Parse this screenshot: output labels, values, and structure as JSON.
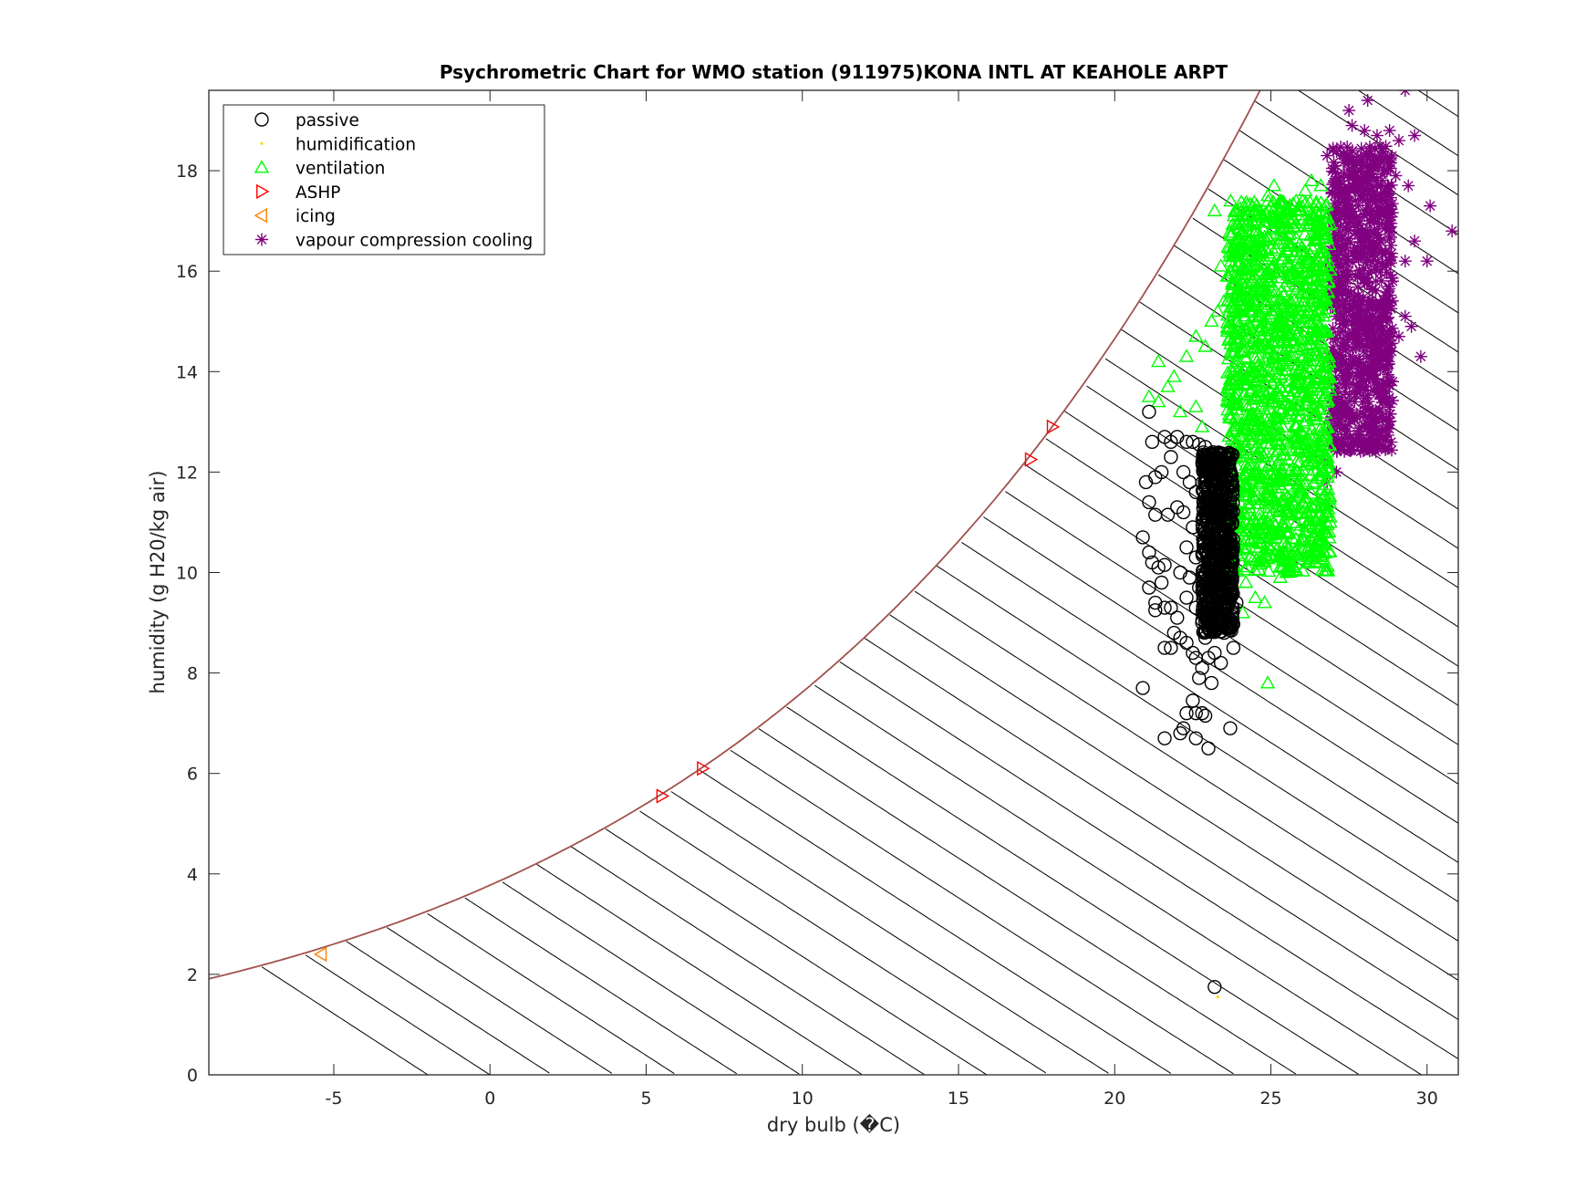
{
  "chart_data": {
    "type": "scatter",
    "title": "Psychrometric Chart for WMO station (911975)KONA INTL AT KEAHOLE ARPT",
    "xlabel": "dry bulb (�C)",
    "ylabel": "humidity (g H20/kg air)",
    "xlim": [
      -9,
      31
    ],
    "ylim": [
      0,
      19.6
    ],
    "xticks": [
      -5,
      0,
      5,
      10,
      15,
      20,
      25,
      30
    ],
    "yticks": [
      0,
      2,
      4,
      6,
      8,
      10,
      12,
      14,
      16,
      18
    ],
    "grid": false,
    "legend_position": "top-left",
    "saturation_curve": {
      "color": "#a0524d",
      "x": [
        -9,
        -8,
        -7,
        -6,
        -5,
        -4,
        -3,
        -2,
        -1,
        0,
        1,
        2,
        3,
        4,
        5,
        6,
        7,
        8,
        9,
        10,
        11,
        12,
        13,
        14,
        15,
        16,
        17,
        18,
        19,
        20,
        21,
        22,
        23,
        24,
        25
      ],
      "y": [
        1.76,
        1.92,
        2.09,
        2.27,
        2.47,
        2.69,
        2.93,
        3.18,
        3.46,
        3.76,
        4.05,
        4.36,
        4.69,
        5.04,
        5.42,
        5.82,
        6.25,
        6.7,
        7.18,
        7.7,
        8.24,
        8.82,
        9.43,
        10.08,
        10.77,
        11.5,
        12.27,
        13.08,
        13.95,
        14.87,
        15.84,
        16.87,
        17.96,
        19.11,
        20.32
      ]
    },
    "series": [
      {
        "name": "passive",
        "marker": "circle",
        "color": "#000000",
        "points": [
          [
            21.1,
            13.2
          ],
          [
            21.2,
            12.6
          ],
          [
            21.6,
            12.7
          ],
          [
            21.8,
            12.6
          ],
          [
            21.8,
            12.3
          ],
          [
            21.5,
            12.0
          ],
          [
            21.3,
            11.9
          ],
          [
            21.0,
            11.8
          ],
          [
            21.1,
            11.4
          ],
          [
            21.3,
            11.15
          ],
          [
            21.7,
            11.15
          ],
          [
            20.9,
            10.7
          ],
          [
            21.1,
            10.4
          ],
          [
            21.2,
            10.2
          ],
          [
            21.4,
            10.1
          ],
          [
            21.6,
            10.15
          ],
          [
            21.5,
            9.8
          ],
          [
            21.1,
            9.7
          ],
          [
            21.3,
            9.4
          ],
          [
            21.3,
            9.25
          ],
          [
            21.6,
            9.3
          ],
          [
            21.8,
            9.3
          ],
          [
            22.0,
            9.1
          ],
          [
            21.9,
            8.8
          ],
          [
            21.8,
            8.5
          ],
          [
            21.6,
            8.5
          ],
          [
            22.1,
            8.7
          ],
          [
            22.3,
            8.6
          ],
          [
            22.5,
            8.4
          ],
          [
            22.6,
            8.3
          ],
          [
            22.8,
            8.1
          ],
          [
            22.7,
            7.9
          ],
          [
            23.1,
            7.8
          ],
          [
            20.9,
            7.7
          ],
          [
            22.5,
            7.45
          ],
          [
            22.6,
            7.2
          ],
          [
            22.8,
            7.2
          ],
          [
            22.9,
            7.15
          ],
          [
            22.3,
            7.2
          ],
          [
            22.2,
            6.9
          ],
          [
            22.1,
            6.8
          ],
          [
            23.7,
            6.9
          ],
          [
            22.6,
            6.7
          ],
          [
            21.6,
            6.7
          ],
          [
            23.0,
            6.5
          ],
          [
            23.2,
            1.75
          ],
          [
            22.0,
            12.7
          ],
          [
            22.3,
            12.6
          ],
          [
            22.5,
            12.6
          ],
          [
            22.7,
            12.55
          ],
          [
            22.9,
            12.5
          ],
          [
            22.2,
            12.0
          ],
          [
            22.4,
            11.8
          ],
          [
            22.6,
            11.6
          ],
          [
            22.0,
            11.3
          ],
          [
            22.2,
            11.2
          ],
          [
            22.5,
            10.9
          ],
          [
            22.3,
            10.5
          ],
          [
            22.6,
            10.3
          ],
          [
            22.1,
            10.0
          ],
          [
            22.4,
            9.9
          ],
          [
            22.7,
            9.7
          ],
          [
            22.3,
            9.5
          ],
          [
            22.6,
            9.3
          ],
          [
            22.8,
            9.0
          ],
          [
            23.0,
            8.9
          ],
          [
            23.3,
            9.0
          ],
          [
            23.5,
            8.8
          ],
          [
            23.6,
            9.3
          ],
          [
            23.9,
            9.4
          ],
          [
            23.8,
            8.5
          ],
          [
            23.4,
            8.2
          ],
          [
            23.2,
            8.4
          ],
          [
            23.0,
            8.3
          ],
          [
            22.9,
            8.7
          ]
        ],
        "dense_region": {
          "x_range": [
            22.8,
            23.8
          ],
          "y_range": [
            8.8,
            12.4
          ],
          "count": 700
        }
      },
      {
        "name": "humidification",
        "marker": "point",
        "color": "#ffd700",
        "points": [
          [
            23.3,
            1.55
          ]
        ]
      },
      {
        "name": "ventilation",
        "marker": "triangle-up",
        "color": "#00ff00",
        "points": [
          [
            21.4,
            14.2
          ],
          [
            21.1,
            13.5
          ],
          [
            21.4,
            13.4
          ],
          [
            21.7,
            13.7
          ],
          [
            21.9,
            13.9
          ],
          [
            22.3,
            14.3
          ],
          [
            22.1,
            13.2
          ],
          [
            22.6,
            14.7
          ],
          [
            22.9,
            14.5
          ],
          [
            23.2,
            17.2
          ],
          [
            23.4,
            16.1
          ],
          [
            23.6,
            15.9
          ],
          [
            23.3,
            15.2
          ],
          [
            23.5,
            15.4
          ],
          [
            23.1,
            15.0
          ],
          [
            23.8,
            16.3
          ],
          [
            24.1,
            15.6
          ],
          [
            24.3,
            16.6
          ],
          [
            24.6,
            17.2
          ],
          [
            24.9,
            17.5
          ],
          [
            25.1,
            17.7
          ],
          [
            25.3,
            17.4
          ],
          [
            25.6,
            17.2
          ],
          [
            25.9,
            17.3
          ],
          [
            26.1,
            17.6
          ],
          [
            26.3,
            17.8
          ],
          [
            26.6,
            17.7
          ],
          [
            26.5,
            17.0
          ],
          [
            24.5,
            9.5
          ],
          [
            24.8,
            9.4
          ],
          [
            25.0,
            10.3
          ],
          [
            25.3,
            9.9
          ],
          [
            25.6,
            10.1
          ],
          [
            26.2,
            10.4
          ],
          [
            26.6,
            10.6
          ],
          [
            26.9,
            11.0
          ],
          [
            26.3,
            11.2
          ],
          [
            24.2,
            9.8
          ],
          [
            24.1,
            9.2
          ],
          [
            24.9,
            7.8
          ],
          [
            25.5,
            10.0
          ],
          [
            26.1,
            10.8
          ],
          [
            25.2,
            11.3
          ],
          [
            24.6,
            10.8
          ],
          [
            23.8,
            12.8
          ],
          [
            22.6,
            13.3
          ],
          [
            22.8,
            12.9
          ]
        ],
        "dense_region": {
          "x_range": [
            23.6,
            26.9
          ],
          "y_range": [
            10.0,
            17.4
          ],
          "count": 1600
        }
      },
      {
        "name": "ASHP",
        "marker": "triangle-right",
        "color": "#ff0000",
        "points": [
          [
            5.5,
            5.55
          ],
          [
            6.8,
            6.1
          ],
          [
            17.3,
            12.25
          ],
          [
            18.0,
            12.9
          ]
        ]
      },
      {
        "name": "icing",
        "marker": "triangle-left",
        "color": "#ff8000",
        "points": [
          [
            -5.4,
            2.4
          ]
        ]
      },
      {
        "name": "vapour compression cooling",
        "marker": "asterisk",
        "color": "#800080",
        "points": [
          [
            29.3,
            19.6
          ],
          [
            28.1,
            19.4
          ],
          [
            27.5,
            19.2
          ],
          [
            27.6,
            18.9
          ],
          [
            28.0,
            18.8
          ],
          [
            28.4,
            18.7
          ],
          [
            28.8,
            18.8
          ],
          [
            29.1,
            18.6
          ],
          [
            29.6,
            18.7
          ],
          [
            26.8,
            18.3
          ],
          [
            27.9,
            18.1
          ],
          [
            28.6,
            18.2
          ],
          [
            29.0,
            17.9
          ],
          [
            29.4,
            17.7
          ],
          [
            30.1,
            17.3
          ],
          [
            30.8,
            16.8
          ],
          [
            29.6,
            16.6
          ],
          [
            29.3,
            16.2
          ],
          [
            28.9,
            15.8
          ],
          [
            28.7,
            15.3
          ],
          [
            29.3,
            15.1
          ],
          [
            29.5,
            14.9
          ],
          [
            29.1,
            14.7
          ],
          [
            28.2,
            14.6
          ],
          [
            29.8,
            14.3
          ],
          [
            28.6,
            14.1
          ],
          [
            28.9,
            13.8
          ],
          [
            28.4,
            13.6
          ],
          [
            28.1,
            13.3
          ],
          [
            27.6,
            13.1
          ],
          [
            27.0,
            12.9
          ],
          [
            27.3,
            12.5
          ],
          [
            26.8,
            12.2
          ],
          [
            27.1,
            12.0
          ],
          [
            26.8,
            11.8
          ],
          [
            30.0,
            16.2
          ],
          [
            28.5,
            17.2
          ],
          [
            27.8,
            17.6
          ],
          [
            28.3,
            16.4
          ],
          [
            27.9,
            15.0
          ]
        ],
        "dense_region": {
          "x_range": [
            26.9,
            28.9
          ],
          "y_range": [
            12.4,
            18.5
          ],
          "count": 900
        }
      }
    ]
  }
}
